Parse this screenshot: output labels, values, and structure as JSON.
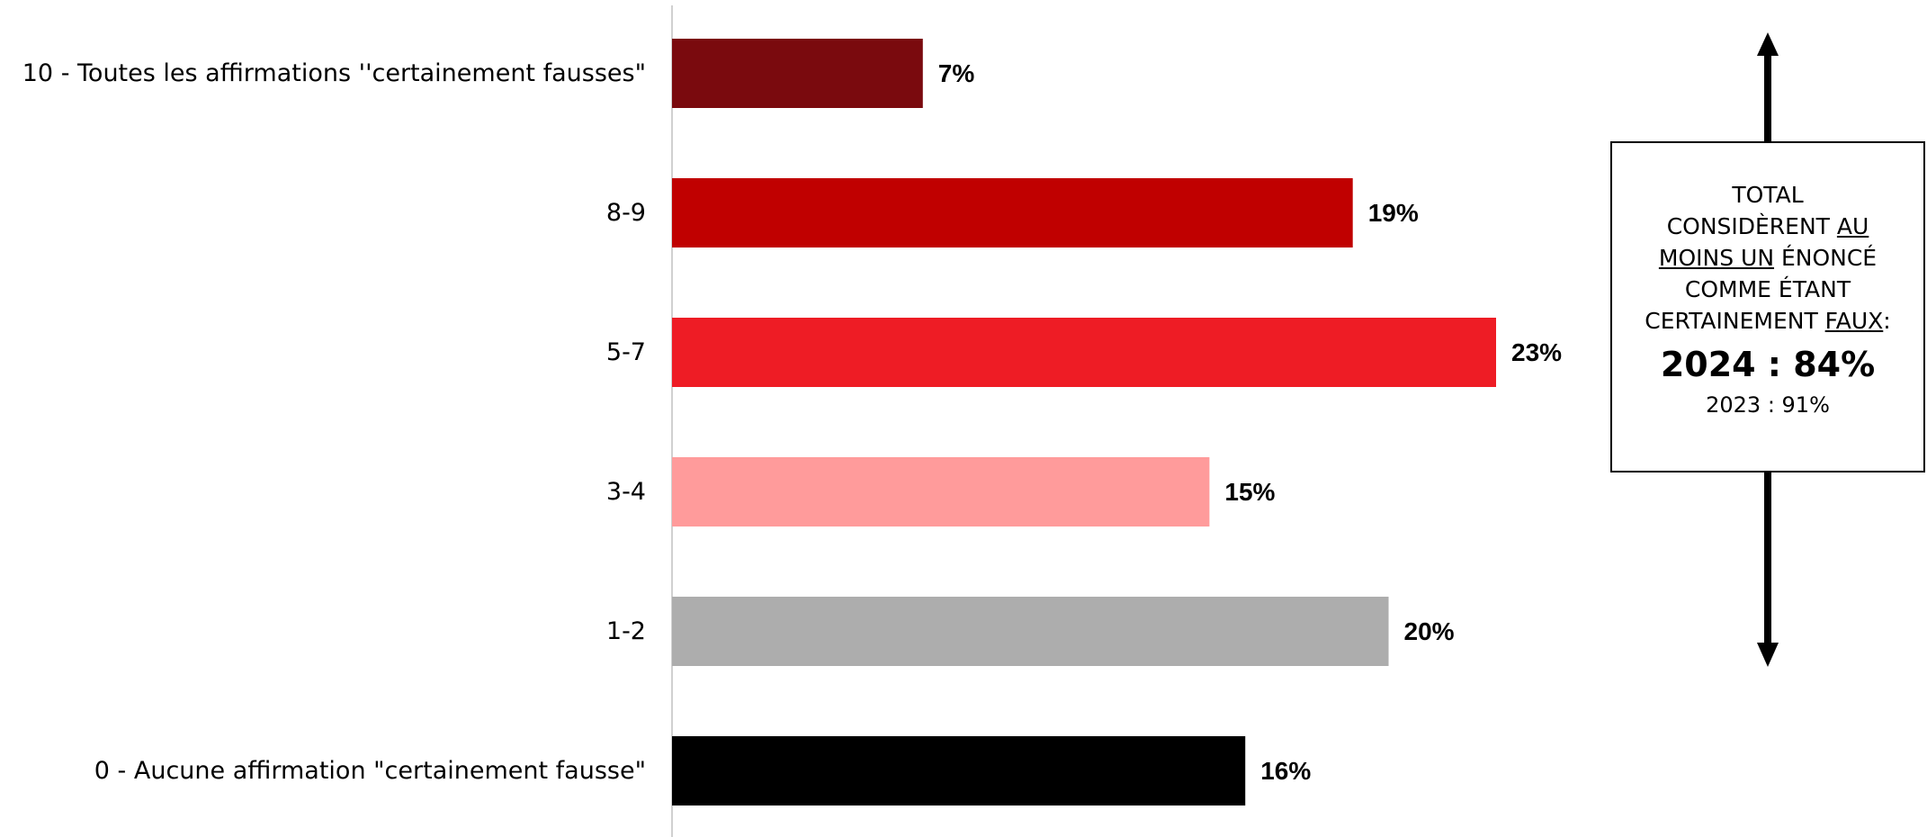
{
  "chart_data": {
    "type": "bar",
    "orientation": "horizontal",
    "categories": [
      "10 - Toutes les affirmations ''certainement fausses\"",
      "8-9",
      "5-7",
      "3-4",
      "1-2",
      "0 - Aucune affirmation \"certainement fausse\""
    ],
    "values": [
      7,
      19,
      23,
      15,
      20,
      16
    ],
    "value_labels": [
      "7%",
      "19%",
      "23%",
      "15%",
      "20%",
      "16%"
    ],
    "colors": [
      "#7a0a0e",
      "#c00000",
      "#ee1c25",
      "#ff9b9b",
      "#adadad",
      "#000000"
    ],
    "xlim": [
      0,
      23
    ],
    "grid": false,
    "legend": "none"
  },
  "summary": {
    "line1": "TOTAL",
    "line2_pre": "CONSIDÈRENT ",
    "line2_u": "AU",
    "line3_u": "MOINS UN",
    "line3_post": " ÉNONCÉ",
    "line4": "COMME ÉTANT",
    "line5_pre": "CERTAINEMENT ",
    "line5_u": "FAUX",
    "line5_post": ":",
    "current": "2024 : 84%",
    "previous": "2023 : 91%"
  }
}
